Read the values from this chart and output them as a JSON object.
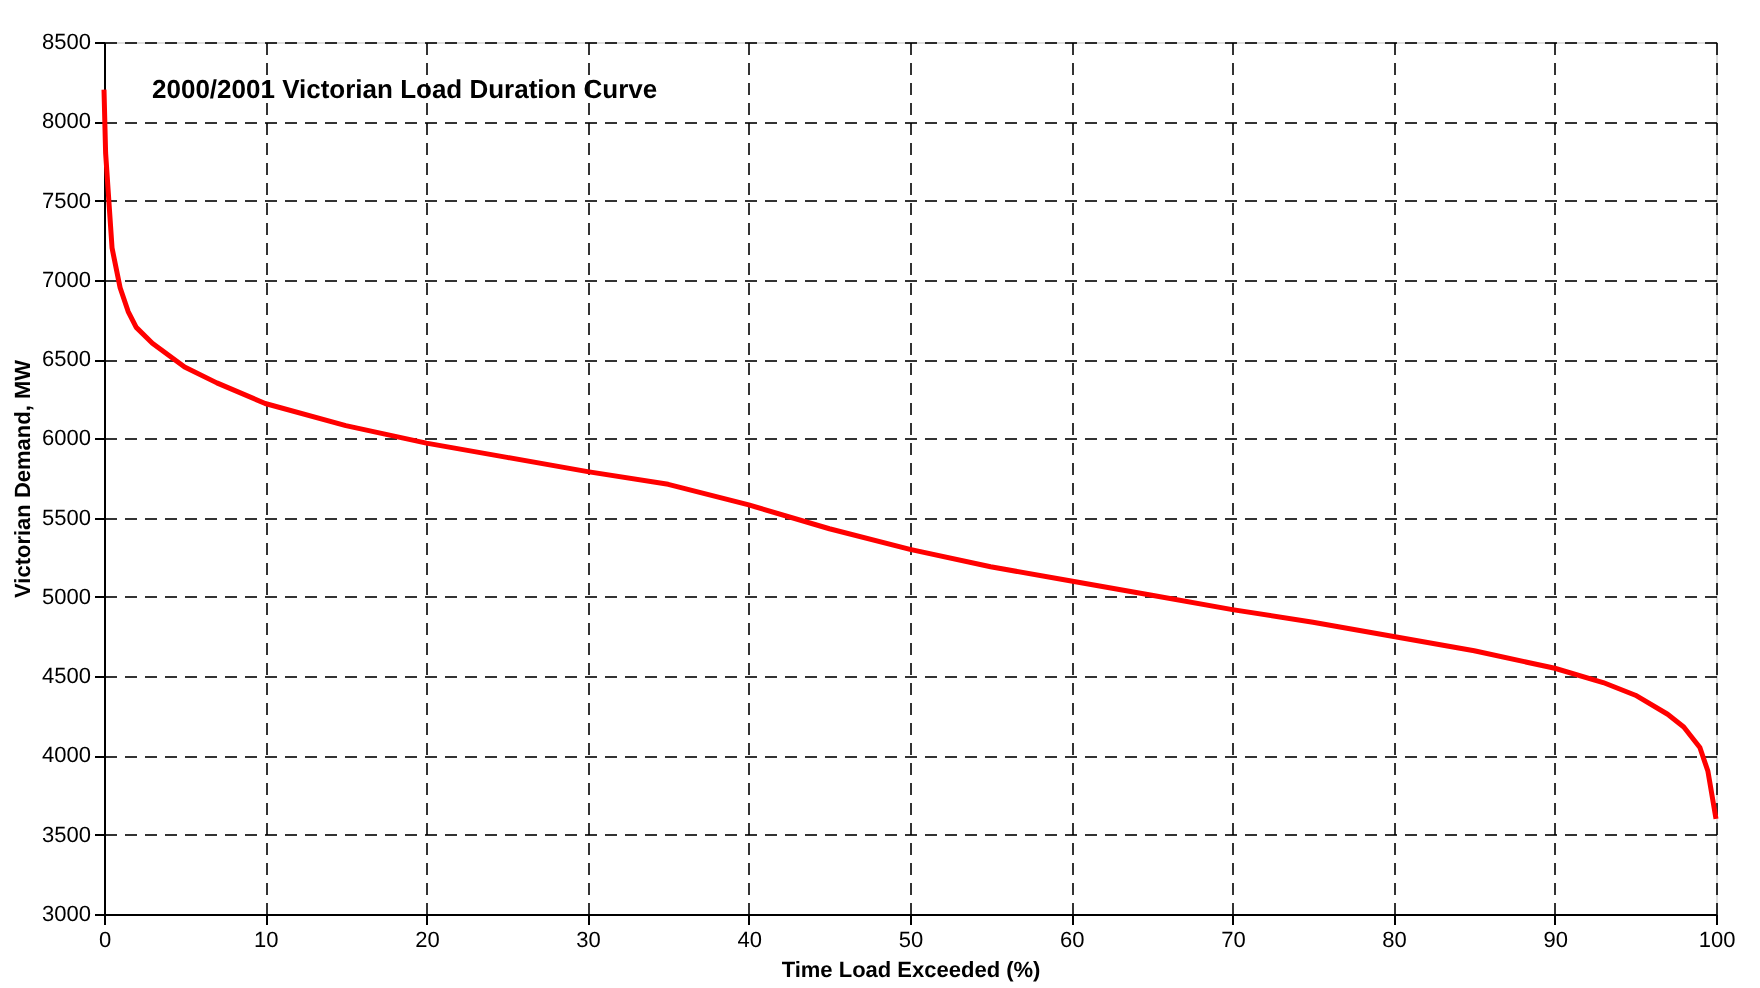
{
  "chart_data": {
    "type": "line",
    "title": "2000/2001 Victorian Load Duration Curve",
    "xlabel": "Time Load Exceeded (%)",
    "ylabel": "Victorian Demand, MW",
    "x": [
      0,
      0.1,
      0.3,
      0.5,
      1,
      1.5,
      2,
      3,
      5,
      7,
      10,
      15,
      20,
      25,
      30,
      35,
      40,
      45,
      50,
      55,
      60,
      65,
      70,
      75,
      80,
      85,
      90,
      93,
      95,
      97,
      98,
      99,
      99.5,
      100
    ],
    "series": [
      {
        "color": "#ff0000",
        "values": [
          8200,
          7800,
          7500,
          7200,
          6950,
          6800,
          6700,
          6600,
          6450,
          6350,
          6220,
          6080,
          5970,
          5880,
          5790,
          5710,
          5580,
          5430,
          5300,
          5190,
          5100,
          5010,
          4920,
          4840,
          4750,
          4660,
          4550,
          4460,
          4380,
          4260,
          4180,
          4050,
          3900,
          3600
        ]
      }
    ],
    "xlim": [
      0,
      100
    ],
    "xticks": [
      0,
      10,
      20,
      30,
      40,
      50,
      60,
      70,
      80,
      90,
      100
    ],
    "ylim": [
      3000,
      8500
    ],
    "yticks": [
      3000,
      3500,
      4000,
      4500,
      5000,
      5500,
      6000,
      6500,
      7000,
      7500,
      8000,
      8500
    ],
    "grid": true,
    "line_style": "solid",
    "marker": "none"
  }
}
